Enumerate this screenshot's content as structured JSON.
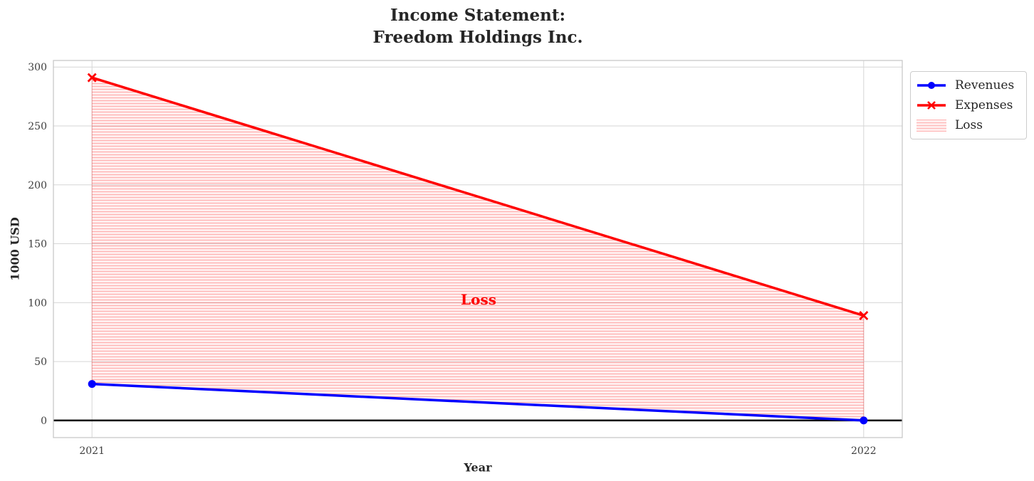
{
  "chart_data": {
    "type": "line",
    "title_lines": [
      "Income Statement:",
      "Freedom Holdings Inc."
    ],
    "xlabel": "Year",
    "ylabel": "1000 USD",
    "x": [
      2021,
      2022
    ],
    "series": [
      {
        "name": "Revenues",
        "color": "#0000ff",
        "marker": "circle",
        "values": [
          31,
          0
        ]
      },
      {
        "name": "Expenses",
        "color": "#ff0000",
        "marker": "x",
        "values": [
          291,
          89
        ]
      }
    ],
    "fill_between": {
      "label": "Loss",
      "upper": "Expenses",
      "lower": "Revenues",
      "fill_color": "rgba(255,0,0,0.07)",
      "hatch": "horizontal",
      "hatch_color": "rgba(255,0,0,0.28)",
      "edge_color": "rgba(255,0,0,0.25)"
    },
    "annotation": {
      "text": "Loss",
      "color": "#ff0000",
      "x": 2021.5,
      "y": 103
    },
    "legend": {
      "entries": [
        "Revenues",
        "Expenses",
        "Loss"
      ],
      "position": "outside upper right"
    },
    "xticks": [
      "2021",
      "2022"
    ],
    "xtick_values": [
      2021,
      2022
    ],
    "yticks": [
      0,
      50,
      100,
      150,
      200,
      250,
      300
    ],
    "xlim": [
      2020.95,
      2022.05
    ],
    "ylim": [
      -14.55,
      305.55
    ],
    "grid": true,
    "grid_color": "#d6d6d6",
    "spine_color": "#c8c8c8",
    "tick_color": "#3d3d3d",
    "zero_line": {
      "y": 0,
      "color": "#000000"
    }
  }
}
